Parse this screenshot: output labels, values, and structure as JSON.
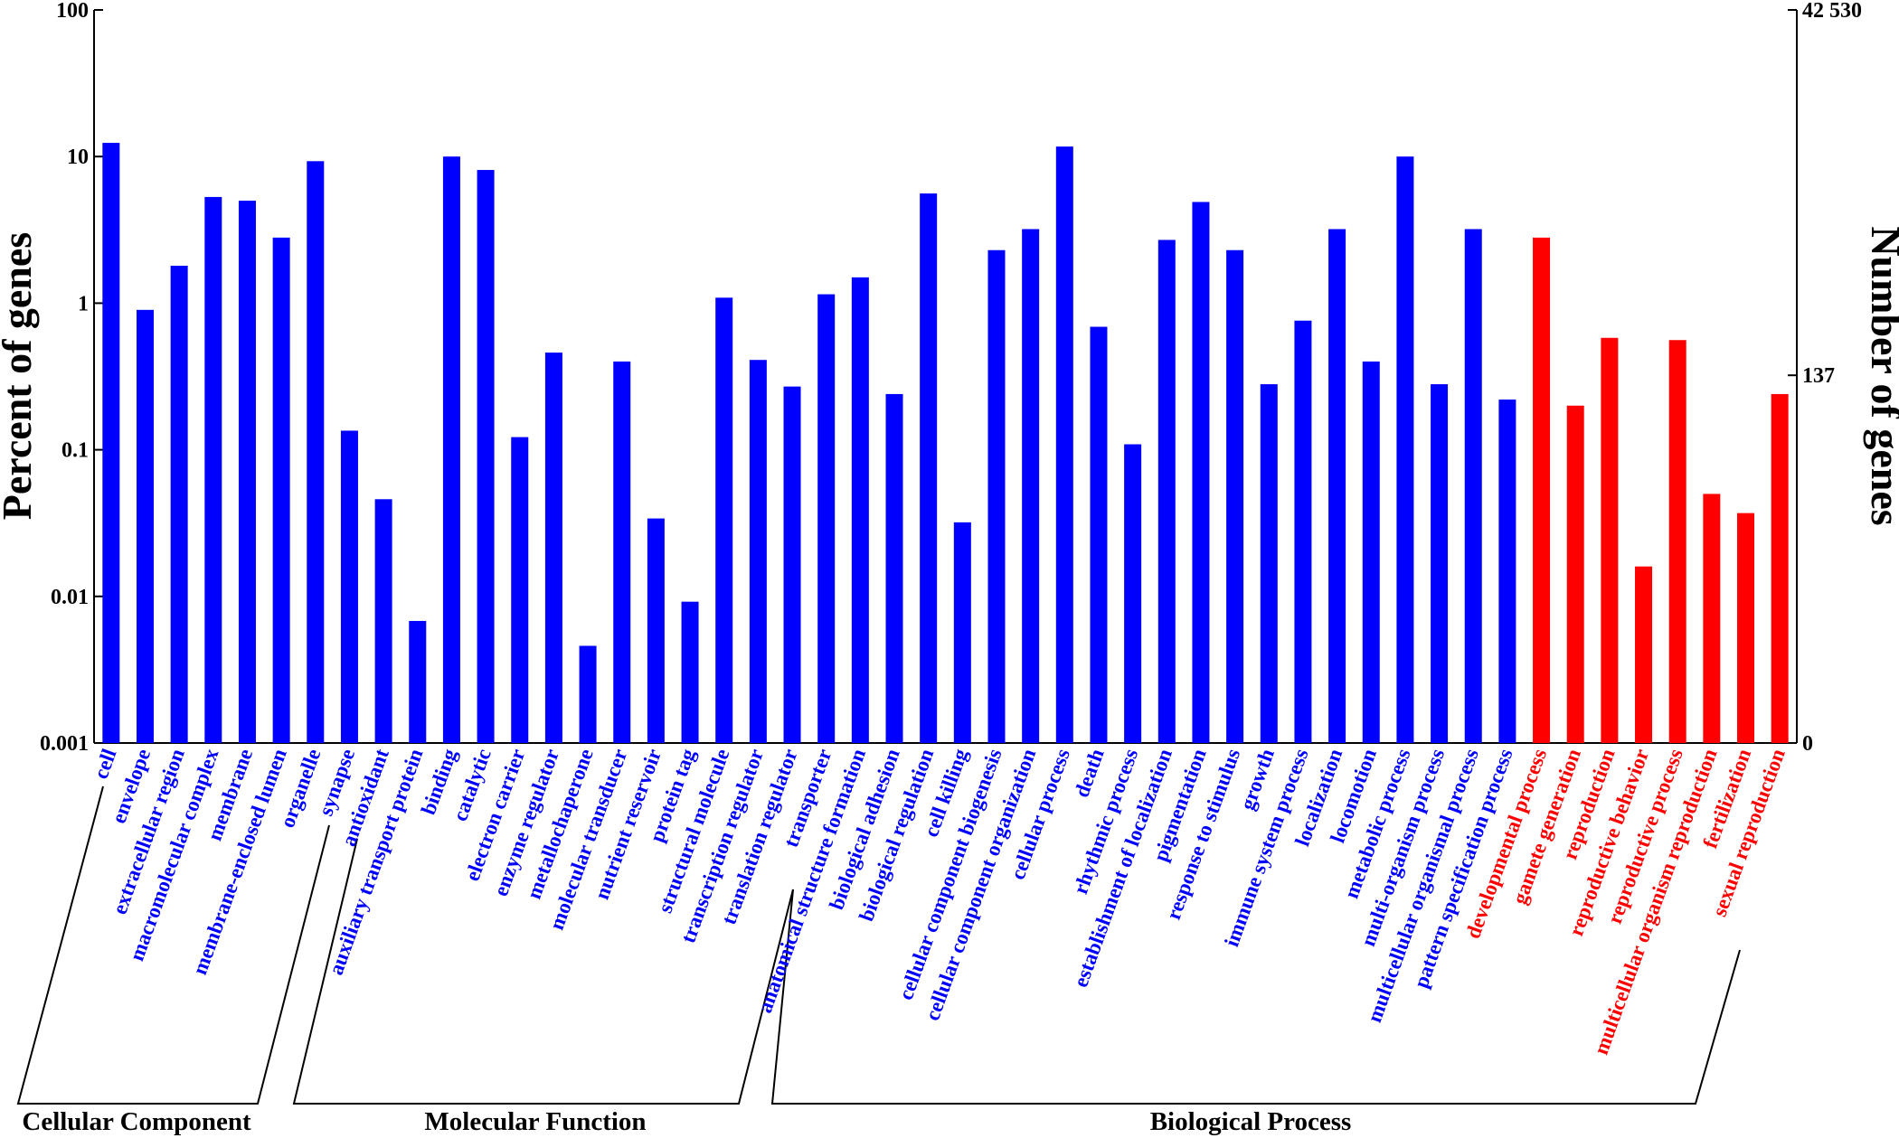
{
  "chart_data": {
    "type": "bar",
    "y_label": "Percent of genes",
    "y2_label": "Number of genes",
    "log_scale": true,
    "categories": [
      "cell",
      "envelope",
      "extracellular region",
      "macromolecular complex",
      "membrane",
      "membrane-enclosed lumen",
      "organelle",
      "synapse",
      "antioxidant",
      "auxiliary transport protein",
      "binding",
      "catalytic",
      "electron carrier",
      "enzyme regulator",
      "metallochaperone",
      "molecular transducer",
      "nutrient reservoir",
      "protein tag",
      "structural molecule",
      "transcription regulator",
      "translation regulator",
      "transporter",
      "anatomical structure formation",
      "biological adhesion",
      "biological regulation",
      "cell killing",
      "cellular component biogenesis",
      "cellular component organization",
      "cellular process",
      "death",
      "rhythmic process",
      "establishment of localization",
      "pigmentation",
      "response to stimulus",
      "growth",
      "immune system process",
      "localization",
      "locomotion",
      "metabolic process",
      "multi-organism process",
      "multicellular organismal process",
      "pattern specification process",
      "developmental process",
      "gamete generation",
      "reproduction",
      "reproductive behavior",
      "reproductive process",
      "multicellular organism reproduction",
      "fertilization",
      "sexual reproduction"
    ],
    "values": [
      12.4,
      0.9,
      1.8,
      5.3,
      5.0,
      2.8,
      9.3,
      0.135,
      0.046,
      0.0068,
      10,
      8.1,
      0.122,
      0.46,
      0.0046,
      0.4,
      0.034,
      0.0092,
      1.09,
      0.41,
      0.27,
      1.15,
      1.5,
      0.24,
      5.6,
      0.032,
      2.3,
      3.2,
      11.7,
      0.69,
      0.109,
      2.7,
      4.9,
      2.3,
      0.28,
      0.76,
      3.2,
      0.4,
      10,
      0.28,
      3.2,
      0.22,
      2.8,
      0.2,
      0.58,
      0.016,
      0.56,
      0.05,
      0.037,
      0.24
    ],
    "colors": [
      "#0000ff",
      "#0000ff",
      "#0000ff",
      "#0000ff",
      "#0000ff",
      "#0000ff",
      "#0000ff",
      "#0000ff",
      "#0000ff",
      "#0000ff",
      "#0000ff",
      "#0000ff",
      "#0000ff",
      "#0000ff",
      "#0000ff",
      "#0000ff",
      "#0000ff",
      "#0000ff",
      "#0000ff",
      "#0000ff",
      "#0000ff",
      "#0000ff",
      "#0000ff",
      "#0000ff",
      "#0000ff",
      "#0000ff",
      "#0000ff",
      "#0000ff",
      "#0000ff",
      "#0000ff",
      "#0000ff",
      "#0000ff",
      "#0000ff",
      "#0000ff",
      "#0000ff",
      "#0000ff",
      "#0000ff",
      "#0000ff",
      "#0000ff",
      "#0000ff",
      "#0000ff",
      "#0000ff",
      "#ff0000",
      "#ff0000",
      "#ff0000",
      "#ff0000",
      "#ff0000",
      "#ff0000",
      "#ff0000",
      "#ff0000"
    ],
    "ylim": [
      0.001,
      100
    ],
    "yticks": [
      0.001,
      0.01,
      0.1,
      1,
      10,
      100
    ],
    "y2_log_scale": true,
    "y2lim": [
      0.4253,
      42530
    ],
    "y2ticks": [
      {
        "value": 0.4253,
        "label": "0"
      },
      137,
      {
        "value": 42530,
        "label": "42 530"
      }
    ],
    "groups": [
      "Cellular Component",
      "Molecular Function",
      "Biological Process"
    ]
  }
}
